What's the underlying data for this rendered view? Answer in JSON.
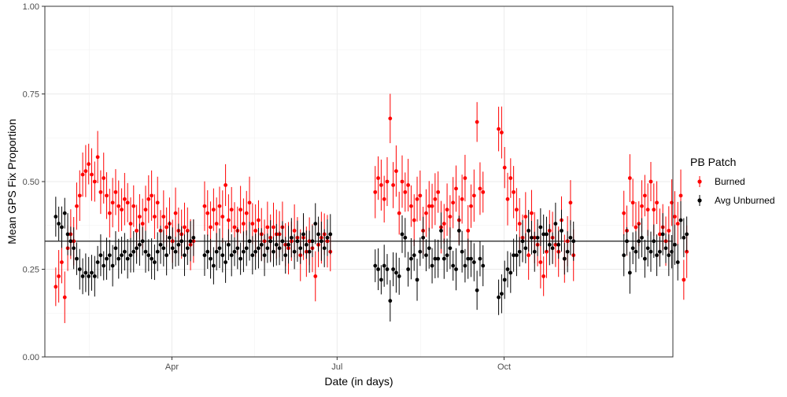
{
  "chart_data": {
    "type": "scatter",
    "title": "",
    "xlabel": "Date (in days)",
    "ylabel": "Mean GPS Fix Proportion",
    "ylim": [
      0,
      1
    ],
    "yticks": [
      "0.00",
      "0.25",
      "0.50",
      "0.75",
      "1.00"
    ],
    "xlim": [
      "2023-01-21",
      "2024-01-02"
    ],
    "xticks": [
      {
        "date": "2023-04-01",
        "label": "Apr"
      },
      {
        "date": "2023-07-01",
        "label": "Jul"
      },
      {
        "date": "2023-10-01",
        "label": "Oct"
      }
    ],
    "grid": true,
    "reference_line": {
      "y": 0.33
    },
    "legend": {
      "title": "PB Patch",
      "position": "right"
    },
    "series": [
      {
        "name": "Burned",
        "color": "#ff0000",
        "segments": [
          {
            "start": "2023-01-27",
            "values": [
              0.2,
              0.23,
              0.27,
              0.17,
              0.31,
              0.35,
              0.33,
              0.43,
              0.46,
              0.52,
              0.53,
              0.55,
              0.52,
              0.5,
              0.57,
              0.47,
              0.51,
              0.46,
              0.41,
              0.44,
              0.47,
              0.43,
              0.42,
              0.45,
              0.44,
              0.38,
              0.43,
              0.36,
              0.4,
              0.38,
              0.42,
              0.45,
              0.46,
              0.4,
              0.44,
              0.36,
              0.4,
              0.37,
              0.38,
              0.33,
              0.41,
              0.36,
              0.35,
              0.37,
              0.36,
              0.32,
              0.33
            ]
          },
          {
            "start": "2023-04-19",
            "values": [
              0.43,
              0.41,
              0.37,
              0.42,
              0.38,
              0.43,
              0.4,
              0.49,
              0.39,
              0.42,
              0.37,
              0.36,
              0.42,
              0.38,
              0.41,
              0.44,
              0.38,
              0.36,
              0.39,
              0.35,
              0.33,
              0.37,
              0.34,
              0.37,
              0.35,
              0.35,
              0.37,
              0.32,
              0.31,
              0.33,
              0.36,
              0.34,
              0.29,
              0.34,
              0.3,
              0.33,
              0.31,
              0.23,
              0.32,
              0.34,
              0.35,
              0.33,
              0.3
            ]
          },
          {
            "start": "2023-07-22",
            "values": [
              0.47,
              0.51,
              0.49,
              0.45,
              0.5,
              0.68,
              0.49,
              0.53,
              0.41,
              0.5,
              0.47,
              0.49,
              0.43,
              0.39,
              0.45,
              0.46,
              0.36,
              0.41,
              0.43,
              0.43,
              0.45,
              0.47,
              0.37,
              0.38,
              0.42,
              0.4,
              0.44,
              0.48,
              0.39,
              0.45,
              0.51,
              0.36,
              0.43,
              0.46,
              0.67,
              0.48,
              0.47
            ]
          },
          {
            "start": "2023-09-28",
            "values": [
              0.65,
              0.64,
              0.54,
              0.45,
              0.51,
              0.47,
              0.42,
              0.38,
              0.34,
              0.4,
              0.29,
              0.41,
              0.34,
              0.32,
              0.27,
              0.23,
              0.3,
              0.36,
              0.34,
              0.32,
              0.3,
              0.39,
              0.28,
              0.33,
              0.44,
              0.29
            ]
          },
          {
            "start": "2023-12-06",
            "values": [
              0.41,
              0.36,
              0.51,
              0.44,
              0.37,
              0.38,
              0.43,
              0.46,
              0.42,
              0.5,
              0.42,
              0.44,
              0.35,
              0.37,
              0.33,
              0.36,
              0.44,
              0.4,
              0.38,
              0.46,
              0.22,
              0.3
            ]
          }
        ]
      },
      {
        "name": "Avg Unburned",
        "color": "#000000",
        "segments": [
          {
            "start": "2023-01-27",
            "values": [
              0.4,
              0.38,
              0.37,
              0.41,
              0.35,
              0.33,
              0.31,
              0.28,
              0.25,
              0.23,
              0.24,
              0.23,
              0.24,
              0.23,
              0.27,
              0.29,
              0.26,
              0.28,
              0.29,
              0.26,
              0.31,
              0.28,
              0.29,
              0.3,
              0.28,
              0.29,
              0.3,
              0.31,
              0.32,
              0.33,
              0.3,
              0.29,
              0.28,
              0.27,
              0.3,
              0.32,
              0.31,
              0.29,
              0.34,
              0.31,
              0.3,
              0.32,
              0.33,
              0.29,
              0.31,
              0.33,
              0.34
            ]
          },
          {
            "start": "2023-04-19",
            "values": [
              0.29,
              0.3,
              0.28,
              0.26,
              0.3,
              0.31,
              0.29,
              0.27,
              0.32,
              0.29,
              0.3,
              0.31,
              0.28,
              0.3,
              0.31,
              0.33,
              0.29,
              0.3,
              0.31,
              0.32,
              0.29,
              0.31,
              0.33,
              0.3,
              0.32,
              0.31,
              0.33,
              0.29,
              0.32,
              0.34,
              0.3,
              0.33,
              0.31,
              0.35,
              0.32,
              0.3,
              0.33,
              0.38,
              0.35,
              0.33,
              0.31,
              0.34,
              0.35
            ]
          },
          {
            "start": "2023-07-22",
            "values": [
              0.26,
              0.25,
              0.22,
              0.26,
              0.25,
              0.16,
              0.25,
              0.24,
              0.23,
              0.35,
              0.34,
              0.25,
              0.28,
              0.29,
              0.22,
              0.3,
              0.34,
              0.29,
              0.31,
              0.26,
              0.28,
              0.28,
              0.36,
              0.28,
              0.29,
              0.31,
              0.26,
              0.25,
              0.36,
              0.3,
              0.26,
              0.28,
              0.28,
              0.27,
              0.19,
              0.28,
              0.26
            ]
          },
          {
            "start": "2023-09-28",
            "values": [
              0.17,
              0.18,
              0.22,
              0.25,
              0.24,
              0.29,
              0.29,
              0.3,
              0.33,
              0.31,
              0.36,
              0.34,
              0.3,
              0.34,
              0.37,
              0.35,
              0.35,
              0.32,
              0.31,
              0.38,
              0.32,
              0.36,
              0.28,
              0.3,
              0.34,
              0.33
            ]
          },
          {
            "start": "2023-12-06",
            "values": [
              0.29,
              0.33,
              0.24,
              0.31,
              0.3,
              0.33,
              0.34,
              0.28,
              0.31,
              0.3,
              0.33,
              0.29,
              0.3,
              0.35,
              0.31,
              0.29,
              0.3,
              0.32,
              0.27,
              0.39,
              0.34,
              0.35
            ]
          }
        ]
      }
    ]
  }
}
